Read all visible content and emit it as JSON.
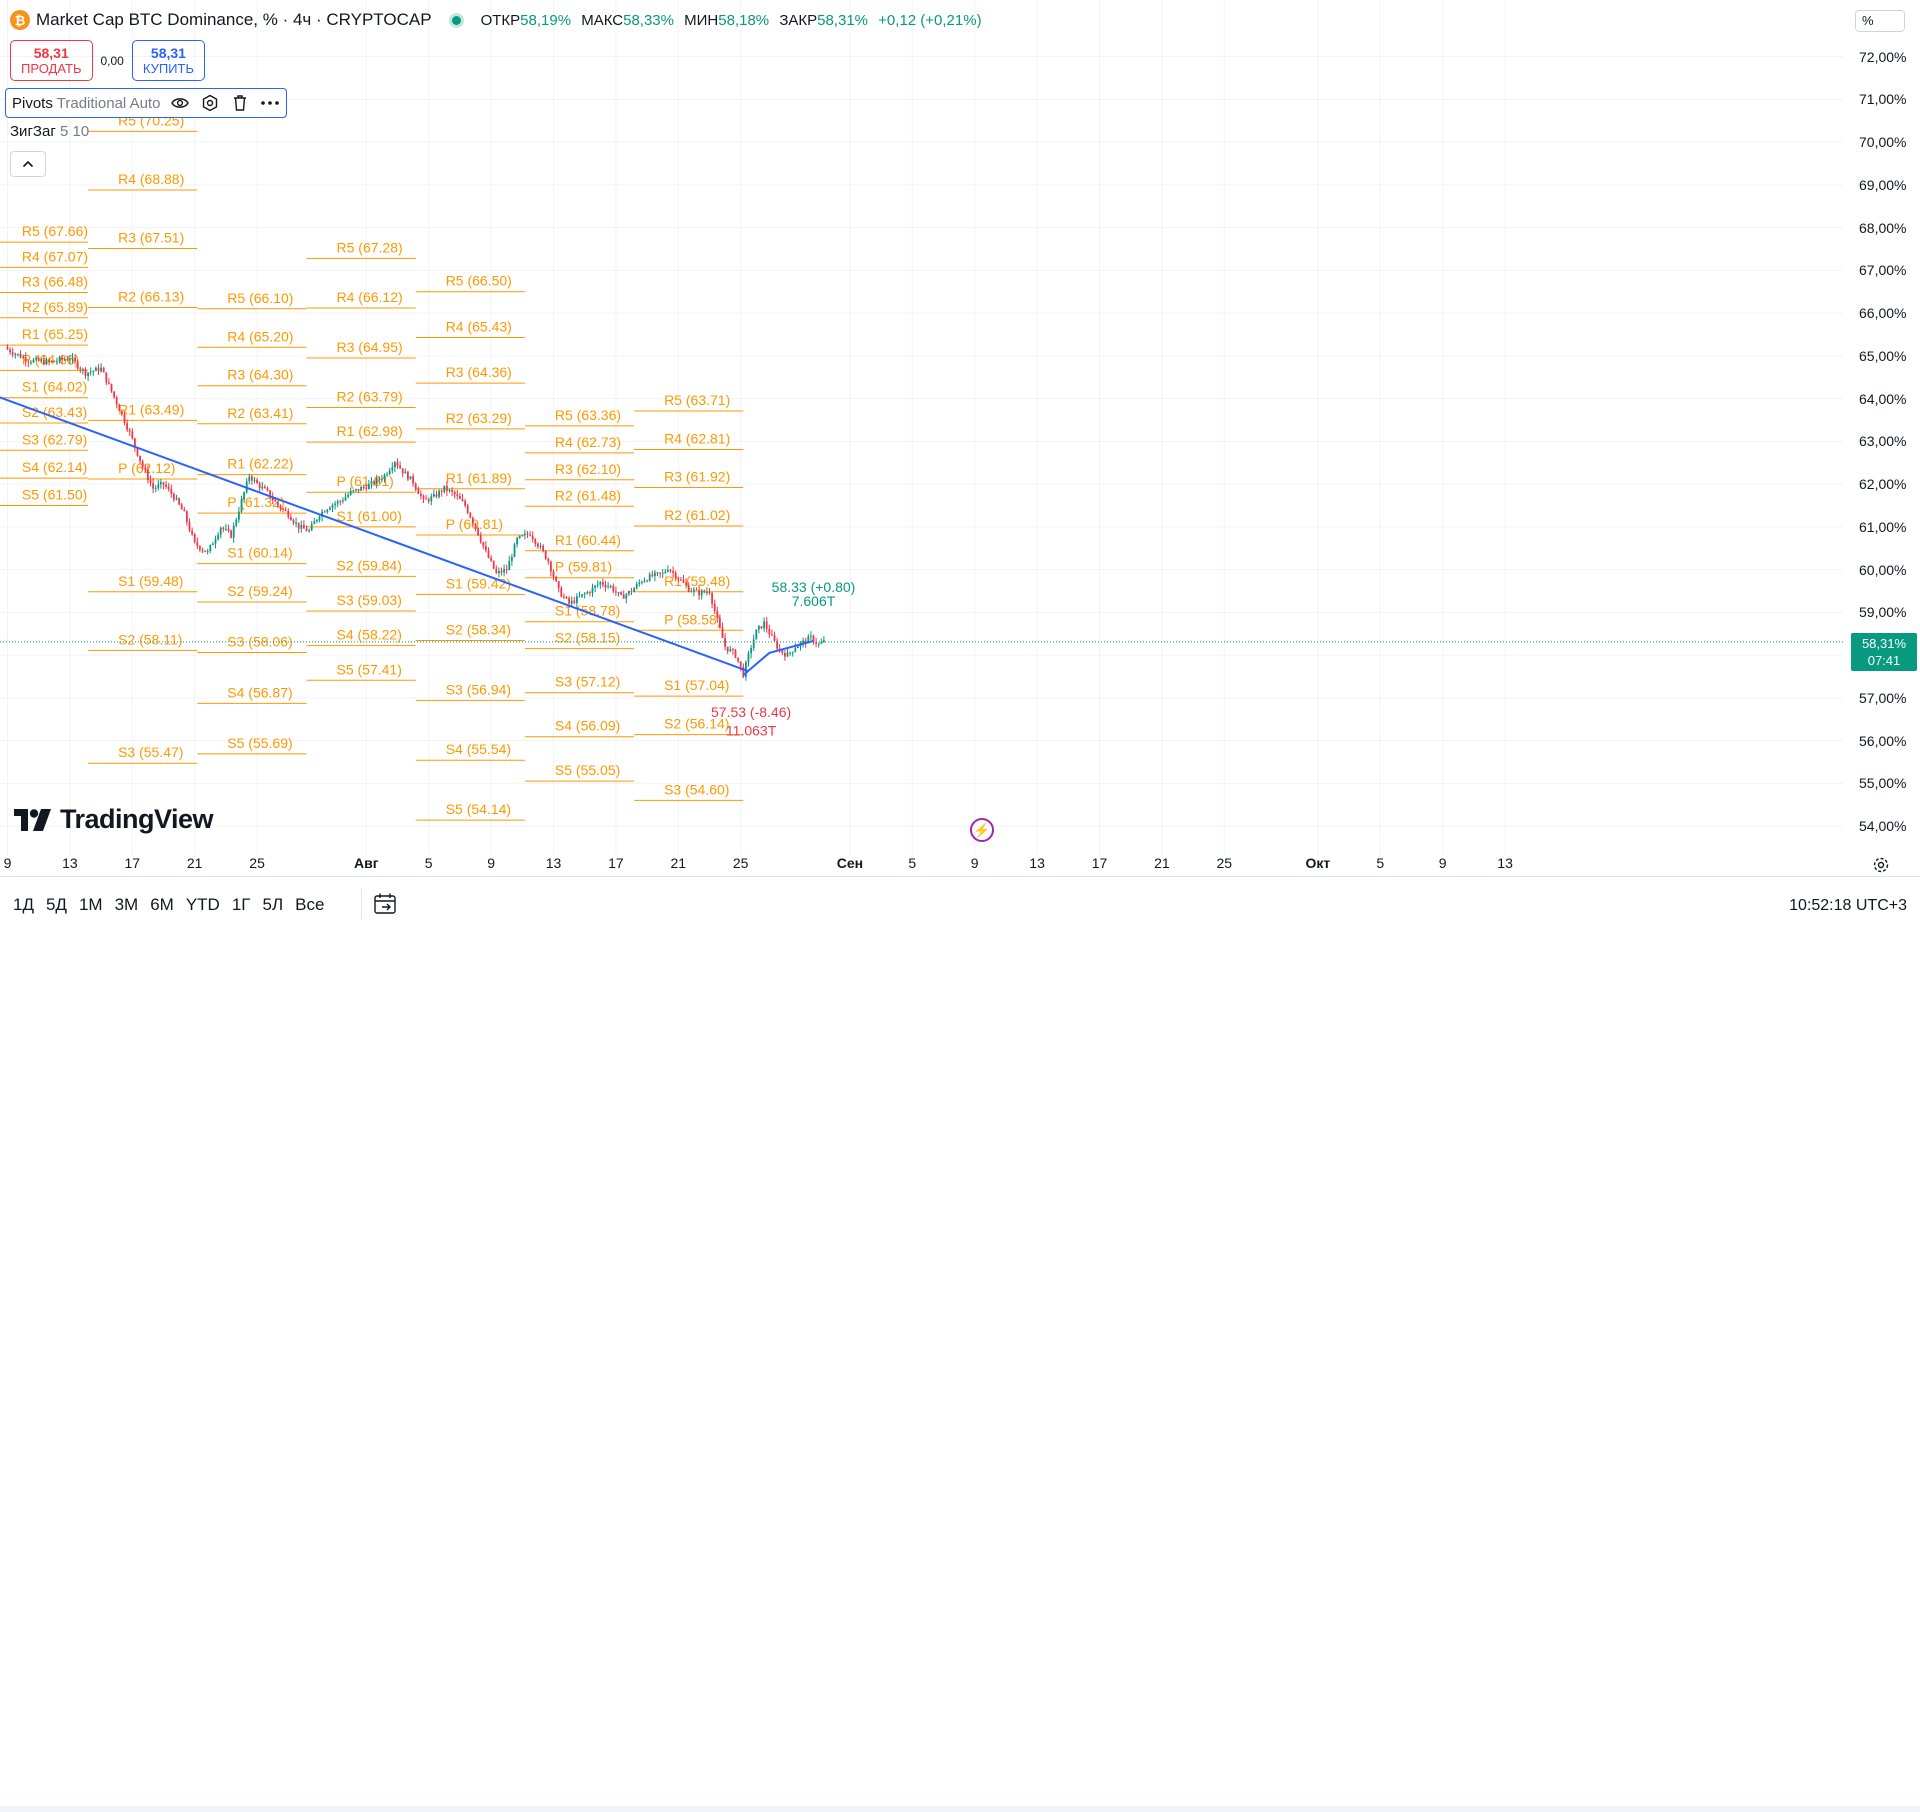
{
  "header": {
    "coin_glyph": "₿",
    "title": "Market Cap BTC Dominance, % · 4ч · CRYPTOCAP",
    "open_label": "ОТКР",
    "open": "58,19%",
    "high_label": "МАКС",
    "high": "58,33%",
    "low_label": "МИН",
    "low": "58,18%",
    "close_label": "ЗАКР",
    "close": "58,31%",
    "change": "+0,12 (+0,21%)"
  },
  "trade": {
    "sell_price": "58,31",
    "sell_label": "ПРОДАТЬ",
    "spread": "0,00",
    "buy_price": "58,31",
    "buy_label": "КУПИТЬ"
  },
  "indicators": {
    "pivots_name": "Pivots",
    "pivots_params": "Traditional Auto",
    "zigzag_name": "ЗигЗаг",
    "zigzag_params": "5 10"
  },
  "logo_text": "TradingView",
  "y_unit": "%",
  "last_price": {
    "value": "58,31%",
    "countdown": "07:41"
  },
  "bottom": {
    "periods": [
      "1Д",
      "5Д",
      "1М",
      "3М",
      "6М",
      "YTD",
      "1Г",
      "5Л",
      "Все"
    ],
    "time": "10:52:18 UTC+3"
  },
  "colors": {
    "up": "#089981",
    "down": "#f23645",
    "pivot": "#ff9800",
    "trend": "#2962ff",
    "zigzag_label_up": "#089981",
    "zigzag_label_down": "#f23645"
  },
  "icons": [
    "bitcoin-icon",
    "eye-icon",
    "settings-icon",
    "trash-icon",
    "more-icon",
    "chevron-up-icon",
    "flash-icon",
    "settings-gear-icon",
    "calendar-range-icon"
  ],
  "chart_data": {
    "type": "candlestick",
    "ylim": [
      53.65,
      72.4
    ],
    "y_ticks": [
      "54,00%",
      "55,00%",
      "56,00%",
      "57,00%",
      "58,00%",
      "59,00%",
      "60,00%",
      "61,00%",
      "62,00%",
      "63,00%",
      "64,00%",
      "65,00%",
      "66,00%",
      "67,00%",
      "68,00%",
      "69,00%",
      "70,00%",
      "71,00%",
      "72,00%"
    ],
    "x_ticks": [
      {
        "label": "9",
        "i": 0
      },
      {
        "label": "13",
        "i": 24
      },
      {
        "label": "17",
        "i": 48
      },
      {
        "label": "21",
        "i": 72
      },
      {
        "label": "25",
        "i": 96
      },
      {
        "label": "Авг",
        "i": 138,
        "bold": true
      },
      {
        "label": "5",
        "i": 162
      },
      {
        "label": "9",
        "i": 186
      },
      {
        "label": "13",
        "i": 210
      },
      {
        "label": "17",
        "i": 234
      },
      {
        "label": "21",
        "i": 258
      },
      {
        "label": "25",
        "i": 282
      },
      {
        "label": "Сен",
        "i": 324,
        "bold": true
      },
      {
        "label": "5",
        "i": 348
      },
      {
        "label": "9",
        "i": 372
      },
      {
        "label": "13",
        "i": 396
      },
      {
        "label": "17",
        "i": 420
      },
      {
        "label": "21",
        "i": 444
      },
      {
        "label": "25",
        "i": 468
      },
      {
        "label": "Окт",
        "i": 504,
        "bold": true
      },
      {
        "label": "5",
        "i": 528
      },
      {
        "label": "9",
        "i": 552
      },
      {
        "label": "13",
        "i": 576
      }
    ],
    "path_anchors": [
      [
        0,
        65.15
      ],
      [
        8,
        64.9
      ],
      [
        16,
        64.85
      ],
      [
        24,
        64.95
      ],
      [
        30,
        64.6
      ],
      [
        36,
        64.7
      ],
      [
        42,
        63.9
      ],
      [
        47,
        63.2
      ],
      [
        52,
        62.4
      ],
      [
        56,
        61.9
      ],
      [
        60,
        62.0
      ],
      [
        64,
        61.7
      ],
      [
        68,
        61.3
      ],
      [
        72,
        60.6
      ],
      [
        77,
        60.4
      ],
      [
        82,
        61.0
      ],
      [
        86,
        60.8
      ],
      [
        90,
        61.6
      ],
      [
        93,
        62.2
      ],
      [
        96,
        62.0
      ],
      [
        100,
        61.8
      ],
      [
        104,
        61.5
      ],
      [
        108,
        61.3
      ],
      [
        112,
        61.0
      ],
      [
        116,
        60.9
      ],
      [
        120,
        61.3
      ],
      [
        124,
        61.5
      ],
      [
        128,
        61.6
      ],
      [
        132,
        61.8
      ],
      [
        136,
        61.9
      ],
      [
        140,
        62.0
      ],
      [
        145,
        62.2
      ],
      [
        149,
        62.55
      ],
      [
        152,
        62.3
      ],
      [
        156,
        62.05
      ],
      [
        160,
        61.6
      ],
      [
        164,
        61.7
      ],
      [
        168,
        61.9
      ],
      [
        172,
        61.75
      ],
      [
        176,
        61.5
      ],
      [
        180,
        61.0
      ],
      [
        184,
        60.4
      ],
      [
        188,
        59.9
      ],
      [
        192,
        60.0
      ],
      [
        196,
        60.7
      ],
      [
        201,
        60.85
      ],
      [
        205,
        60.5
      ],
      [
        208,
        60.2
      ],
      [
        212,
        59.5
      ],
      [
        216,
        59.2
      ],
      [
        220,
        59.35
      ],
      [
        224,
        59.5
      ],
      [
        228,
        59.7
      ],
      [
        232,
        59.6
      ],
      [
        236,
        59.35
      ],
      [
        240,
        59.5
      ],
      [
        244,
        59.75
      ],
      [
        248,
        59.85
      ],
      [
        252,
        59.9
      ],
      [
        254,
        60.05
      ],
      [
        258,
        59.8
      ],
      [
        262,
        59.55
      ],
      [
        266,
        59.45
      ],
      [
        270,
        59.5
      ],
      [
        273,
        58.8
      ],
      [
        276,
        58.2
      ],
      [
        280,
        58.0
      ],
      [
        283,
        57.55
      ],
      [
        286,
        58.2
      ],
      [
        288,
        58.55
      ],
      [
        291,
        58.75
      ],
      [
        294,
        58.4
      ],
      [
        297,
        58.1
      ],
      [
        300,
        58.0
      ],
      [
        303,
        58.2
      ],
      [
        306,
        58.3
      ],
      [
        309,
        58.4
      ],
      [
        312,
        58.25
      ],
      [
        314,
        58.31
      ]
    ],
    "trend_line": {
      "from": {
        "i": -4,
        "y": 64.05
      },
      "to": {
        "i": 285,
        "y": 57.62
      }
    },
    "zigzag": [
      {
        "i": 283,
        "y": 57.53
      },
      {
        "i": 293,
        "y": 58.05
      },
      {
        "i": 310,
        "y": 58.33
      }
    ],
    "zigzag_labels": [
      {
        "text": "58.33 (+0.80)",
        "i": 310,
        "y": 59.48,
        "dir": "up"
      },
      {
        "text": "7.606T",
        "i": 310,
        "y": 59.15,
        "dir": "up"
      },
      {
        "text": "57.53 (-8.46)",
        "i": 286,
        "y": 56.55,
        "dir": "down"
      },
      {
        "text": "11.063T",
        "i": 286,
        "y": 56.12,
        "dir": "down"
      }
    ],
    "pivot_periods": [
      {
        "i0": -6,
        "i1": 31,
        "levels": [
          {
            "name": "R5",
            "v": 67.66,
            "label": "R5 (67.66)"
          },
          {
            "name": "R4",
            "v": 67.07,
            "label": "R4 (67.07)"
          },
          {
            "name": "R3",
            "v": 66.48,
            "label": "R3 (66.48)"
          },
          {
            "name": "R2",
            "v": 65.89,
            "label": "R2 (65.89)"
          },
          {
            "name": "R1",
            "v": 65.25,
            "label": "R1 (65.25)"
          },
          {
            "name": "P",
            "v": 64.66,
            "label": "P (64.66)"
          },
          {
            "name": "S1",
            "v": 64.02,
            "label": "S1 (64.02)"
          },
          {
            "name": "S2",
            "v": 63.43,
            "label": "S2 (63.43)"
          },
          {
            "name": "S3",
            "v": 62.79,
            "label": "S3 (62.79)"
          },
          {
            "name": "S4",
            "v": 62.14,
            "label": "S4 (62.14)"
          },
          {
            "name": "S5",
            "v": 61.5,
            "label": "S5 (61.50)"
          }
        ]
      },
      {
        "i0": 31,
        "i1": 73,
        "levels": [
          {
            "name": "R5",
            "v": 70.25,
            "label": "R5 (70.25)"
          },
          {
            "name": "R4",
            "v": 68.88,
            "label": "R4 (68.88)"
          },
          {
            "name": "R3",
            "v": 67.51,
            "label": "R3 (67.51)"
          },
          {
            "name": "R2",
            "v": 66.13,
            "label": "R2 (66.13)"
          },
          {
            "name": "R1",
            "v": 63.49,
            "label": "R1 (63.49)"
          },
          {
            "name": "P",
            "v": 62.12,
            "label": "P (62.12)"
          },
          {
            "name": "S1",
            "v": 59.48,
            "label": "S1 (59.48)"
          },
          {
            "name": "S2",
            "v": 58.11,
            "label": "S2 (58.11)"
          },
          {
            "name": "S3",
            "v": 55.47,
            "label": "S3 (55.47)"
          }
        ]
      },
      {
        "i0": 73,
        "i1": 115,
        "levels": [
          {
            "name": "R5",
            "v": 66.1,
            "label": "R5 (66.10)"
          },
          {
            "name": "R4",
            "v": 65.2,
            "label": "R4 (65.20)"
          },
          {
            "name": "R3",
            "v": 64.3,
            "label": "R3 (64.30)"
          },
          {
            "name": "R2",
            "v": 63.41,
            "label": "R2 (63.41)"
          },
          {
            "name": "R1",
            "v": 62.22,
            "label": "R1 (62.22)"
          },
          {
            "name": "P",
            "v": 61.32,
            "label": "P (61.32)"
          },
          {
            "name": "S1",
            "v": 60.14,
            "label": "S1 (60.14)"
          },
          {
            "name": "S2",
            "v": 59.24,
            "label": "S2 (59.24)"
          },
          {
            "name": "S3",
            "v": 58.06,
            "label": "S3 (58.06)"
          },
          {
            "name": "S4",
            "v": 56.87,
            "label": "S4 (56.87)"
          },
          {
            "name": "S5",
            "v": 55.69,
            "label": "S5 (55.69)"
          }
        ]
      },
      {
        "i0": 115,
        "i1": 157,
        "levels": [
          {
            "name": "R5",
            "v": 67.28,
            "label": "R5 (67.28)"
          },
          {
            "name": "R4",
            "v": 66.12,
            "label": "R4 (66.12)"
          },
          {
            "name": "R3",
            "v": 64.95,
            "label": "R3 (64.95)"
          },
          {
            "name": "R2",
            "v": 63.79,
            "label": "R2 (63.79)"
          },
          {
            "name": "R1",
            "v": 62.98,
            "label": "R1 (62.98)"
          },
          {
            "name": "P",
            "v": 61.81,
            "label": "P (61.81)"
          },
          {
            "name": "S1",
            "v": 61.0,
            "label": "S1 (61.00)"
          },
          {
            "name": "S2",
            "v": 59.84,
            "label": "S2 (59.84)"
          },
          {
            "name": "S3",
            "v": 59.03,
            "label": "S3 (59.03)"
          },
          {
            "name": "S4",
            "v": 58.22,
            "label": "S4 (58.22)"
          },
          {
            "name": "S5",
            "v": 57.41,
            "label": "S5 (57.41)"
          }
        ]
      },
      {
        "i0": 157,
        "i1": 199,
        "levels": [
          {
            "name": "R5",
            "v": 66.5,
            "label": "R5 (66.50)"
          },
          {
            "name": "R4",
            "v": 65.43,
            "label": "R4 (65.43)"
          },
          {
            "name": "R3",
            "v": 64.36,
            "label": "R3 (64.36)"
          },
          {
            "name": "R2",
            "v": 63.29,
            "label": "R2 (63.29)"
          },
          {
            "name": "R1",
            "v": 61.89,
            "label": "R1 (61.89)"
          },
          {
            "name": "P",
            "v": 60.81,
            "label": "P (60.81)"
          },
          {
            "name": "S1",
            "v": 59.42,
            "label": "S1 (59.42)"
          },
          {
            "name": "S2",
            "v": 58.34,
            "label": "S2 (58.34)"
          },
          {
            "name": "S3",
            "v": 56.94,
            "label": "S3 (56.94)"
          },
          {
            "name": "S4",
            "v": 55.54,
            "label": "S4 (55.54)"
          },
          {
            "name": "S5",
            "v": 54.14,
            "label": "S5 (54.14)"
          }
        ]
      },
      {
        "i0": 199,
        "i1": 241,
        "levels": [
          {
            "name": "R5",
            "v": 63.36,
            "label": "R5 (63.36)"
          },
          {
            "name": "R4",
            "v": 62.73,
            "label": "R4 (62.73)"
          },
          {
            "name": "R3",
            "v": 62.1,
            "label": "R3 (62.10)"
          },
          {
            "name": "R2",
            "v": 61.48,
            "label": "R2 (61.48)"
          },
          {
            "name": "R1",
            "v": 60.44,
            "label": "R1 (60.44)"
          },
          {
            "name": "P",
            "v": 59.81,
            "label": "P (59.81)"
          },
          {
            "name": "S1",
            "v": 58.78,
            "label": "S1 (58.78)"
          },
          {
            "name": "S2",
            "v": 58.15,
            "label": "S2 (58.15)"
          },
          {
            "name": "S3",
            "v": 57.12,
            "label": "S3 (57.12)"
          },
          {
            "name": "S4",
            "v": 56.09,
            "label": "S4 (56.09)"
          },
          {
            "name": "S5",
            "v": 55.05,
            "label": "S5 (55.05)"
          }
        ]
      },
      {
        "i0": 241,
        "i1": 283,
        "levels": [
          {
            "name": "R5",
            "v": 63.71,
            "label": "R5 (63.71)"
          },
          {
            "name": "R4",
            "v": 62.81,
            "label": "R4 (62.81)"
          },
          {
            "name": "R3",
            "v": 61.92,
            "label": "R3 (61.92)"
          },
          {
            "name": "R2",
            "v": 61.02,
            "label": "R2 (61.02)"
          },
          {
            "name": "R1",
            "v": 59.48,
            "label": "R1 (59.48)"
          },
          {
            "name": "P",
            "v": 58.58,
            "label": "P (58.58)"
          },
          {
            "name": "S1",
            "v": 57.04,
            "label": "S1 (57.04)"
          },
          {
            "name": "S2",
            "v": 56.14,
            "label": "S2 (56.14)"
          },
          {
            "name": "S3",
            "v": 54.6,
            "label": "S3 (54.60)"
          }
        ]
      }
    ]
  }
}
